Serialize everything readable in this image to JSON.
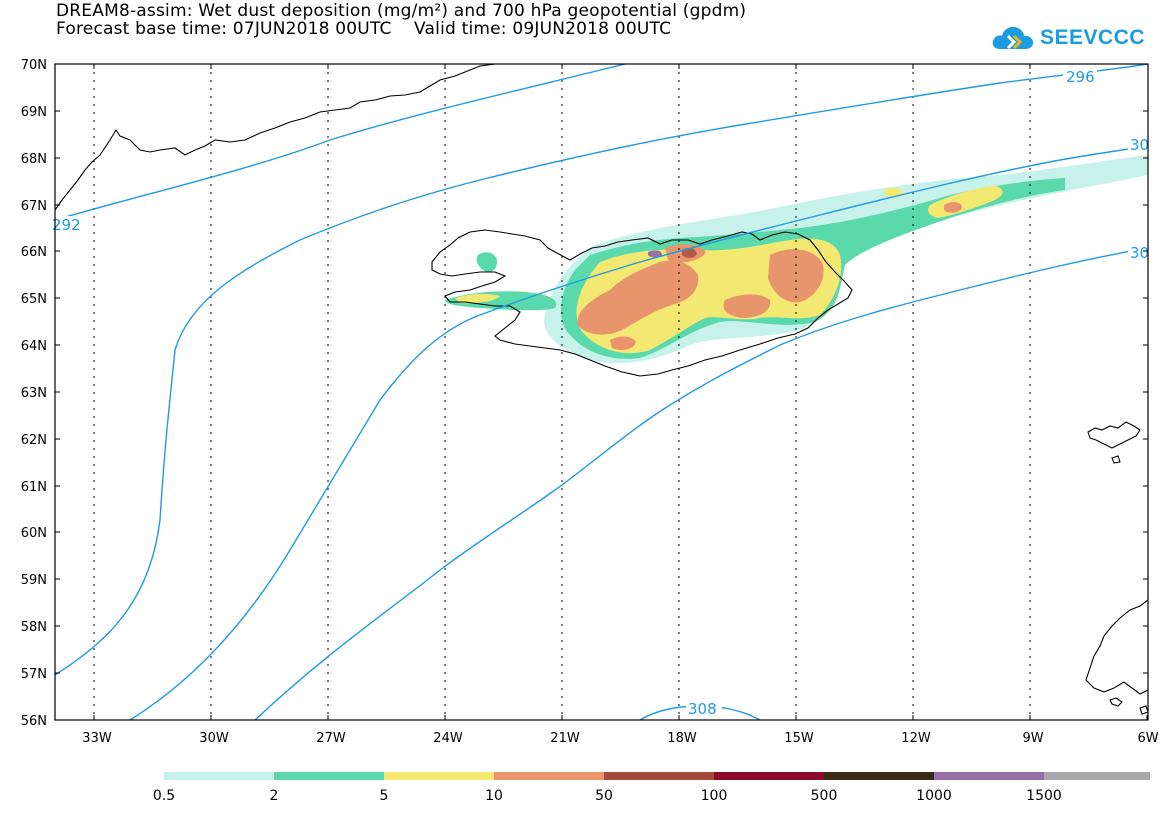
{
  "title": {
    "line1": "DREAM8-assim: Wet dust deposition (mg/m²) and 700 hPa geopotential (gpdm)",
    "line2": "Forecast base time: 07JUN2018 00UTC    Valid time: 09JUN2018 00UTC"
  },
  "logo": {
    "text": "SEEVCCC",
    "icon": "cloud-logo-icon",
    "color": "#1b9be0"
  },
  "map": {
    "lon_range": [
      -34,
      -6
    ],
    "lat_range": [
      56,
      70
    ],
    "lat_ticks": [
      "70N",
      "69N",
      "68N",
      "67N",
      "66N",
      "65N",
      "64N",
      "63N",
      "62N",
      "61N",
      "60N",
      "59N",
      "58N",
      "57N",
      "56N"
    ],
    "lon_ticks": [
      "33W",
      "30W",
      "27W",
      "24W",
      "21W",
      "18W",
      "15W",
      "12W",
      "9W",
      "6W"
    ],
    "contour_color": "#1e9be2",
    "contour_labels": [
      {
        "text": "292",
        "lon": -33.9,
        "lat": 66.6
      },
      {
        "text": "296",
        "lon": -8.9,
        "lat": 69.6
      },
      {
        "text": "30",
        "lon": -6.5,
        "lat": 68.3
      },
      {
        "text": "30",
        "lon": -6.5,
        "lat": 66.0
      },
      {
        "text": "308",
        "lon": -17.8,
        "lat": 56.3
      }
    ]
  },
  "legend": {
    "colors": [
      "#c6f2ea",
      "#5ad9ad",
      "#f2e872",
      "#e8956d",
      "#a44b3c",
      "#8b0a2e",
      "#3a2a14",
      "#9670a6",
      "#a8a8a8"
    ],
    "labels": [
      "0.5",
      "2",
      "5",
      "10",
      "50",
      "100",
      "500",
      "1000",
      "1500"
    ]
  }
}
